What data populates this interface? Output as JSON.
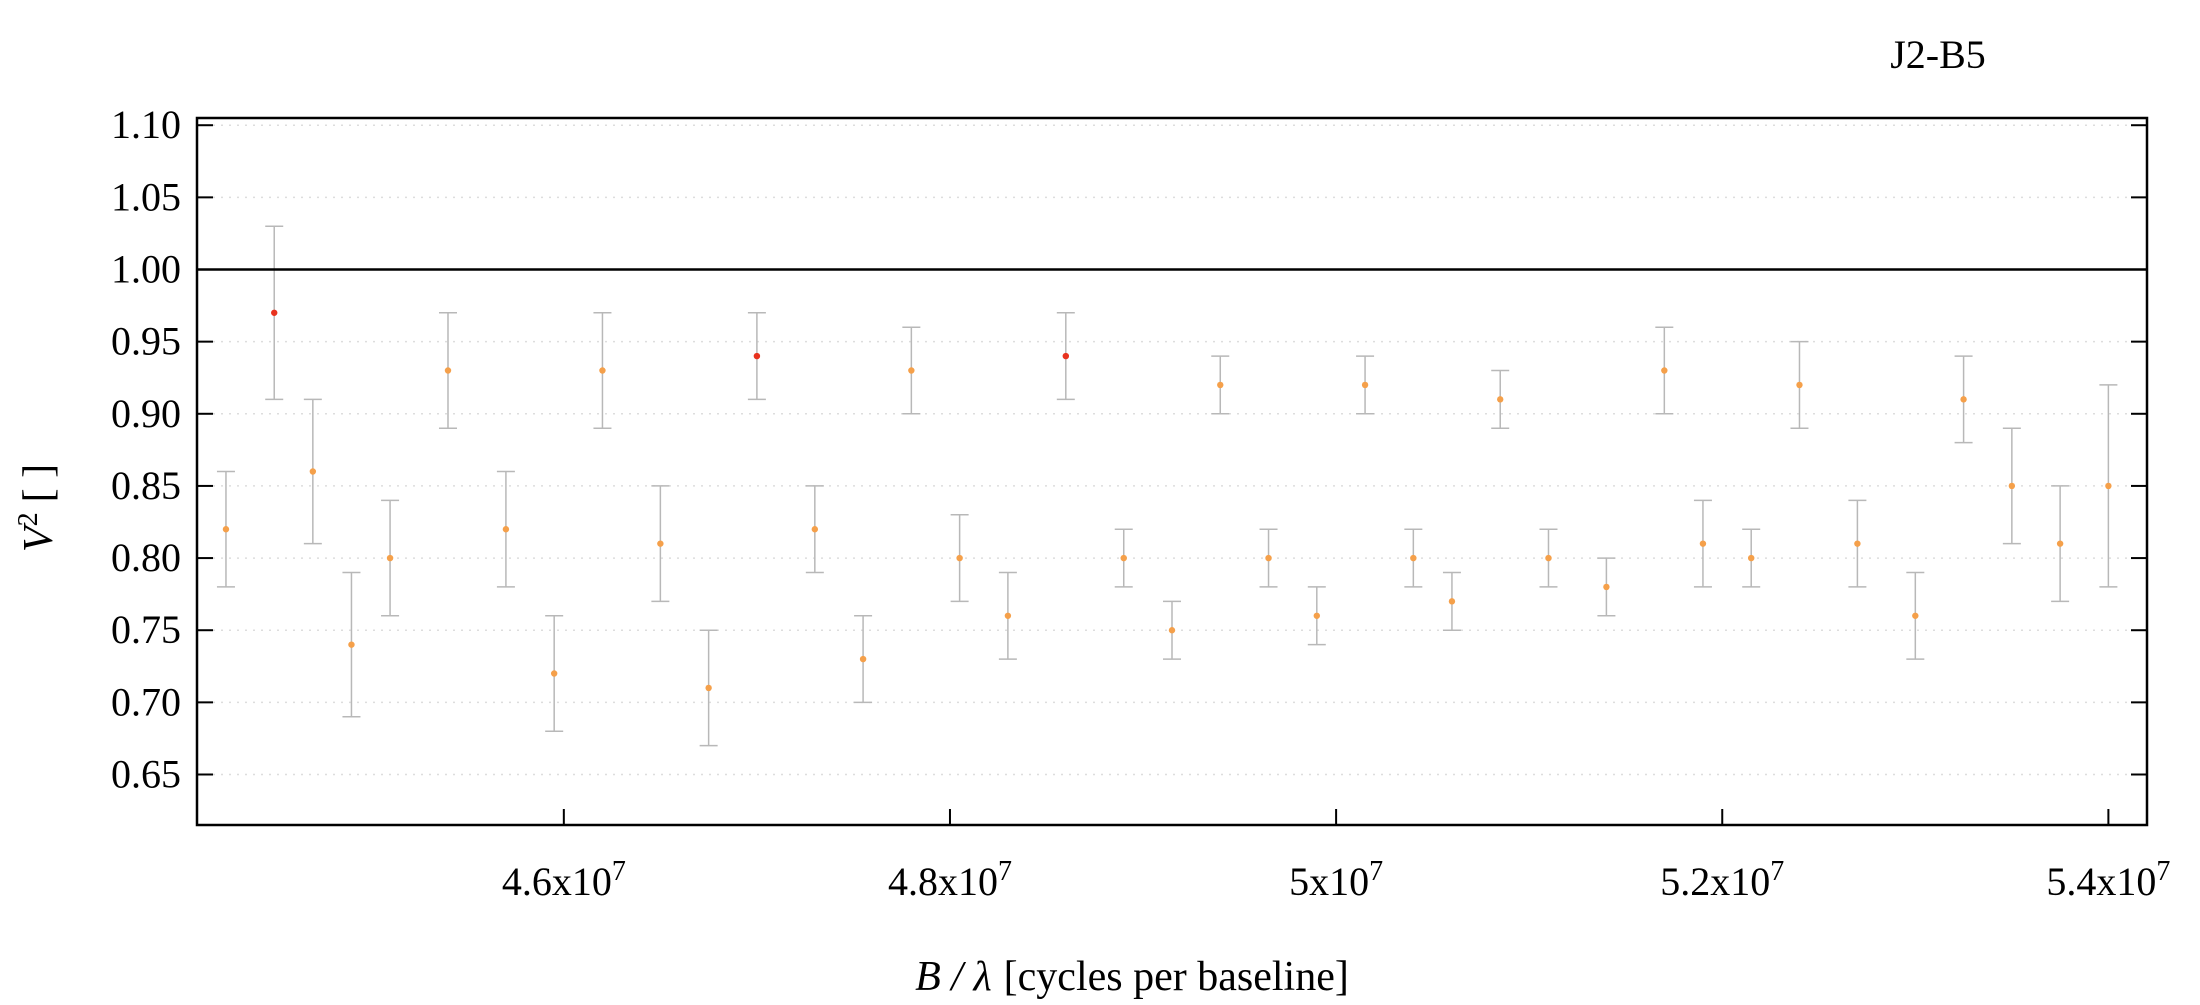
{
  "chart_data": {
    "type": "scatter",
    "title": "J2-B5",
    "xlabel": {
      "symbol": "B / λ",
      "text": "[cycles per baseline]"
    },
    "ylabel": {
      "base": "V",
      "sup": "2",
      "unit": "[ ]"
    },
    "xlim": [
      44100000,
      54200000
    ],
    "ylim": [
      0.615,
      1.105
    ],
    "x_ticks": [
      {
        "value": 46000000,
        "mantissa": "4.6x10",
        "exp": "7"
      },
      {
        "value": 48000000,
        "mantissa": "4.8x10",
        "exp": "7"
      },
      {
        "value": 50000000,
        "mantissa": "5x10",
        "exp": "7"
      },
      {
        "value": 52000000,
        "mantissa": "5.2x10",
        "exp": "7"
      },
      {
        "value": 54000000,
        "mantissa": "5.4x10",
        "exp": "7"
      }
    ],
    "y_ticks": [
      {
        "value": 0.65,
        "label": "0.65"
      },
      {
        "value": 0.7,
        "label": "0.70"
      },
      {
        "value": 0.75,
        "label": "0.75"
      },
      {
        "value": 0.8,
        "label": "0.80"
      },
      {
        "value": 0.85,
        "label": "0.85"
      },
      {
        "value": 0.9,
        "label": "0.90"
      },
      {
        "value": 0.95,
        "label": "0.95"
      },
      {
        "value": 1.0,
        "label": "1.00"
      },
      {
        "value": 1.05,
        "label": "1.05"
      },
      {
        "value": 1.1,
        "label": "1.10"
      }
    ],
    "reference_line": {
      "y": 1.0
    },
    "grid": {
      "horizontal": true,
      "style": "dotted"
    },
    "error_bars": true,
    "colors": {
      "high": "#e8321e",
      "low": "#f5a04a",
      "errorbar": "#b8b8b8",
      "grid": "#dddddd",
      "axis": "#000000"
    },
    "series": [
      {
        "x": [
          44250000,
          44500000,
          44700000,
          44900000,
          45100000,
          45400000,
          45700000,
          45950000,
          46200000,
          46500000,
          46750000,
          47000000,
          47300000,
          47550000,
          47800000,
          48050000,
          48300000,
          48600000,
          48900000,
          49150000,
          49400000,
          49650000,
          49900000,
          50150000,
          50400000,
          50600000,
          50850000,
          51100000,
          51400000,
          51700000,
          51900000,
          52150000,
          52400000,
          52700000,
          53000000,
          53250000,
          53500000,
          53750000,
          54000000
        ],
        "y": [
          0.82,
          0.97,
          0.86,
          0.74,
          0.8,
          0.93,
          0.82,
          0.72,
          0.93,
          0.81,
          0.71,
          0.94,
          0.82,
          0.73,
          0.93,
          0.8,
          0.76,
          0.94,
          0.8,
          0.75,
          0.92,
          0.8,
          0.76,
          0.92,
          0.8,
          0.77,
          0.91,
          0.8,
          0.78,
          0.93,
          0.81,
          0.8,
          0.92,
          0.81,
          0.76,
          0.91,
          0.85,
          0.81,
          0.85
        ],
        "yerr": [
          0.04,
          0.06,
          0.05,
          0.05,
          0.04,
          0.04,
          0.04,
          0.04,
          0.04,
          0.04,
          0.04,
          0.03,
          0.03,
          0.03,
          0.03,
          0.03,
          0.03,
          0.03,
          0.02,
          0.02,
          0.02,
          0.02,
          0.02,
          0.02,
          0.02,
          0.02,
          0.02,
          0.02,
          0.02,
          0.03,
          0.03,
          0.02,
          0.03,
          0.03,
          0.03,
          0.03,
          0.04,
          0.04,
          0.07
        ]
      }
    ]
  }
}
